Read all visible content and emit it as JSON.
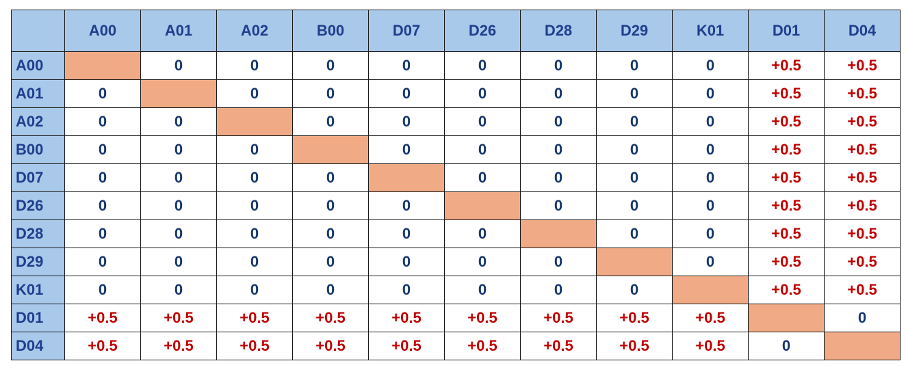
{
  "colors": {
    "header_bg": "#a9c9eb",
    "header_text": "#1f3e8c",
    "zero_text": "#17376e",
    "positive_text": "#c00000",
    "diagonal_fill": "#f0ab86"
  },
  "matrix": {
    "corner": "",
    "columns": [
      "A00",
      "A01",
      "A02",
      "B00",
      "D07",
      "D26",
      "D28",
      "D29",
      "K01",
      "D01",
      "D04"
    ],
    "rows": [
      {
        "label": "A00",
        "cells": [
          "",
          "0",
          "0",
          "0",
          "0",
          "0",
          "0",
          "0",
          "0",
          "+0.5",
          "+0.5"
        ]
      },
      {
        "label": "A01",
        "cells": [
          "0",
          "",
          "0",
          "0",
          "0",
          "0",
          "0",
          "0",
          "0",
          "+0.5",
          "+0.5"
        ]
      },
      {
        "label": "A02",
        "cells": [
          "0",
          "0",
          "",
          "0",
          "0",
          "0",
          "0",
          "0",
          "0",
          "+0.5",
          "+0.5"
        ]
      },
      {
        "label": "B00",
        "cells": [
          "0",
          "0",
          "0",
          "",
          "0",
          "0",
          "0",
          "0",
          "0",
          "+0.5",
          "+0.5"
        ]
      },
      {
        "label": "D07",
        "cells": [
          "0",
          "0",
          "0",
          "0",
          "",
          "0",
          "0",
          "0",
          "0",
          "+0.5",
          "+0.5"
        ]
      },
      {
        "label": "D26",
        "cells": [
          "0",
          "0",
          "0",
          "0",
          "0",
          "",
          "0",
          "0",
          "0",
          "+0.5",
          "+0.5"
        ]
      },
      {
        "label": "D28",
        "cells": [
          "0",
          "0",
          "0",
          "0",
          "0",
          "0",
          "",
          "0",
          "0",
          "+0.5",
          "+0.5"
        ]
      },
      {
        "label": "D29",
        "cells": [
          "0",
          "0",
          "0",
          "0",
          "0",
          "0",
          "0",
          "",
          "0",
          "+0.5",
          "+0.5"
        ]
      },
      {
        "label": "K01",
        "cells": [
          "0",
          "0",
          "0",
          "0",
          "0",
          "0",
          "0",
          "0",
          "",
          "+0.5",
          "+0.5"
        ]
      },
      {
        "label": "D01",
        "cells": [
          "+0.5",
          "+0.5",
          "+0.5",
          "+0.5",
          "+0.5",
          "+0.5",
          "+0.5",
          "+0.5",
          "+0.5",
          "",
          "0"
        ]
      },
      {
        "label": "D04",
        "cells": [
          "+0.5",
          "+0.5",
          "+0.5",
          "+0.5",
          "+0.5",
          "+0.5",
          "+0.5",
          "+0.5",
          "+0.5",
          "0",
          ""
        ]
      }
    ]
  }
}
